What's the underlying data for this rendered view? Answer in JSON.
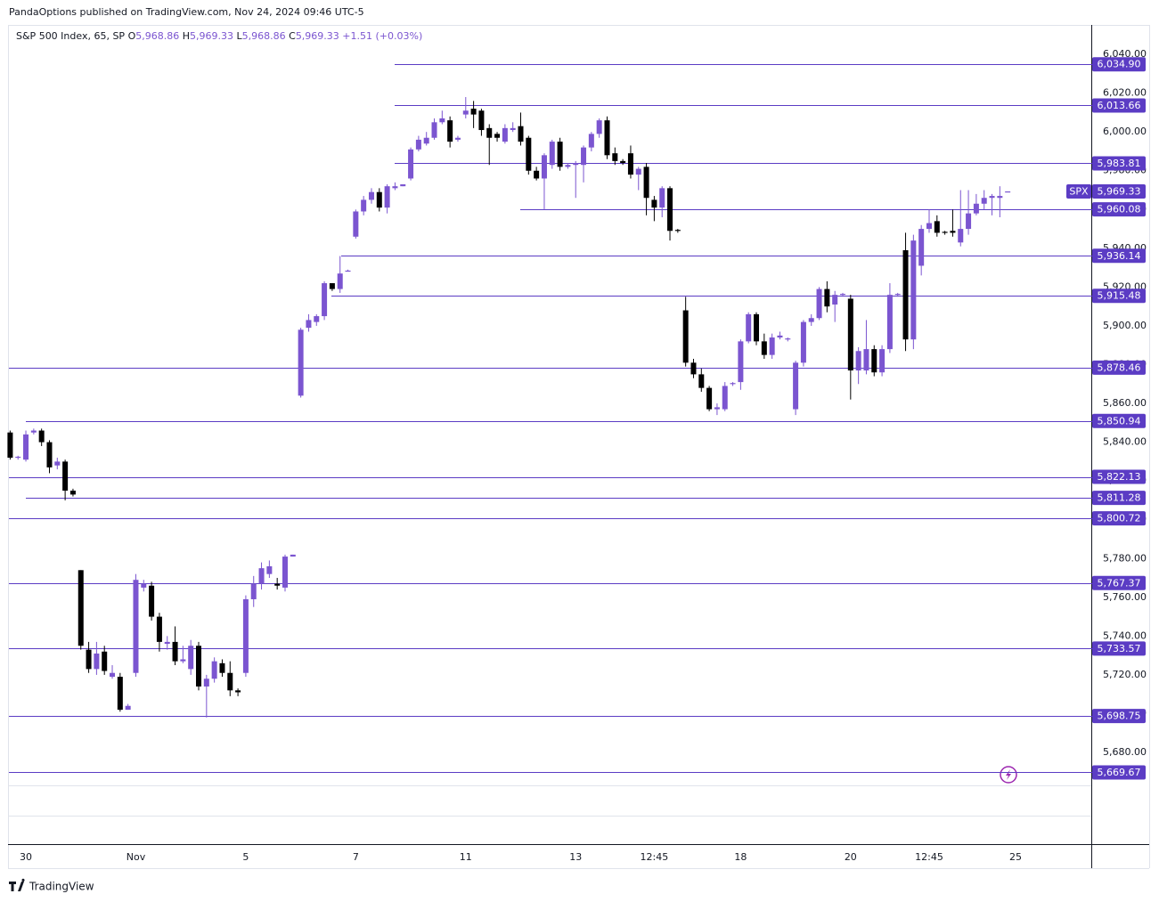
{
  "header": "PandaOptions published on TradingView.com, Nov 24, 2024 09:46 UTC-5",
  "legend": {
    "symbol": "S&P 500 Index, 65, SP",
    "o_key": "O",
    "o": "5,968.86",
    "h_key": "H",
    "h": "5,969.33",
    "l_key": "L",
    "l": "5,968.86",
    "c_key": "C",
    "c": "5,969.33",
    "change": "+1.51 (+0.03%)"
  },
  "footer": "TradingView",
  "chart_data": {
    "type": "candlestick",
    "up_color": "#7b55d0",
    "down_color": "#000000",
    "level_color": "#5b3cc4",
    "grid": false,
    "ylim": [
      5632.7,
      6055.2
    ],
    "yticks": [
      {
        "value": 6040,
        "label": "6,040.00"
      },
      {
        "value": 6020,
        "label": "6,020.00"
      },
      {
        "value": 6000,
        "label": "6,000.00"
      },
      {
        "value": 5980,
        "label": "5,980.00"
      },
      {
        "value": 5960,
        "label": "5,960.00"
      },
      {
        "value": 5940,
        "label": "5,940.00"
      },
      {
        "value": 5920,
        "label": "5,920.00"
      },
      {
        "value": 5900,
        "label": "5,900.00"
      },
      {
        "value": 5880,
        "label": "5,880.00"
      },
      {
        "value": 5860,
        "label": "5,860.00"
      },
      {
        "value": 5840,
        "label": "5,840.00"
      },
      {
        "value": 5820,
        "label": "5,820.00"
      },
      {
        "value": 5800,
        "label": "5,800.00"
      },
      {
        "value": 5780,
        "label": "5,780.00"
      },
      {
        "value": 5760,
        "label": "5,760.00"
      },
      {
        "value": 5740,
        "label": "5,740.00"
      },
      {
        "value": 5720,
        "label": "5,720.00"
      },
      {
        "value": 5700,
        "label": "5,700.00"
      },
      {
        "value": 5680,
        "label": "5,680.00"
      }
    ],
    "levels": [
      {
        "value": 6034.9,
        "label": "6,034.90"
      },
      {
        "value": 6013.66,
        "label": "6,013.66"
      },
      {
        "value": 5983.81,
        "label": "5,983.81"
      },
      {
        "value": 5960.08,
        "label": "5,960.08"
      },
      {
        "value": 5936.14,
        "label": "5,936.14"
      },
      {
        "value": 5915.48,
        "label": "5,915.48"
      },
      {
        "value": 5878.46,
        "label": "5,878.46"
      },
      {
        "value": 5850.94,
        "label": "5,850.94"
      },
      {
        "value": 5822.13,
        "label": "5,822.13"
      },
      {
        "value": 5811.28,
        "label": "5,811.28"
      },
      {
        "value": 5800.72,
        "label": "5,800.72"
      },
      {
        "value": 5767.37,
        "label": "5,767.37"
      },
      {
        "value": 5733.57,
        "label": "5,733.57"
      },
      {
        "value": 5698.75,
        "label": "5,698.75"
      },
      {
        "value": 5669.67,
        "label": "5,669.67"
      }
    ],
    "price": {
      "symbol": "SPX",
      "value": 5969.33,
      "label": "5,969.33"
    },
    "categories": [
      null,
      null,
      "30",
      null,
      null,
      null,
      null,
      null,
      null,
      null,
      null,
      null,
      null,
      null,
      null,
      null,
      "Nov",
      null,
      null,
      null,
      null,
      null,
      null,
      null,
      null,
      null,
      null,
      null,
      null,
      null,
      "5",
      null,
      null,
      null,
      null,
      null,
      null,
      null,
      null,
      null,
      null,
      null,
      null,
      null,
      "7",
      null,
      null,
      null,
      null,
      null,
      null,
      null,
      null,
      null,
      null,
      null,
      null,
      null,
      "11",
      null,
      null,
      null,
      null,
      null,
      null,
      null,
      null,
      null,
      null,
      null,
      null,
      null,
      "13",
      null,
      null,
      null,
      null,
      null,
      null,
      null,
      null,
      null,
      "12:45",
      null,
      null,
      null,
      null,
      null,
      null,
      null,
      null,
      null,
      null,
      "18",
      null,
      null,
      null,
      null,
      null,
      null,
      null,
      null,
      null,
      null,
      null,
      null,
      null,
      "20",
      null,
      null,
      null,
      null,
      null,
      null,
      null,
      null,
      null,
      "12:45",
      null,
      null,
      null,
      null,
      null,
      null,
      null,
      null,
      null,
      null,
      "25"
    ],
    "open": [
      5845,
      5832,
      5831,
      5845,
      5846,
      5840,
      5828,
      5830,
      5815,
      5774,
      5733,
      5723,
      5732,
      5719,
      5719,
      5702,
      5721,
      5765,
      5766,
      5750,
      5736,
      5737,
      5727,
      5723,
      5735,
      5714,
      5718,
      5726,
      5721,
      5712,
      5721,
      5759,
      5767,
      5772,
      5767,
      5765,
      5781,
      5864,
      5899,
      5902,
      5905,
      5922,
      5919,
      5928,
      5946,
      5959,
      5965,
      5969,
      5961,
      5971,
      5972,
      5976,
      5991,
      5994,
      5997,
      6005,
      6006,
      5996,
      6009,
      6012,
      6011,
      6002,
      5999,
      5995,
      6001,
      6003,
      5997,
      5980,
      5976,
      5983,
      5995,
      5982,
      5983,
      5983,
      5992,
      5999,
      6006,
      5989,
      5985,
      5989,
      5978,
      5982,
      5965,
      5961,
      5971,
      5949.5,
      5908,
      5881,
      5875,
      5868,
      5857,
      5857,
      5870,
      5871,
      5892,
      5906,
      5892,
      5885,
      5894,
      5893,
      5857,
      5881,
      5902,
      5904,
      5919,
      5911,
      5916,
      5914,
      5877,
      5877,
      5888,
      5876,
      5888,
      5916,
      5939,
      5893,
      5931,
      5950,
      5954,
      5948.5,
      5949,
      5943,
      5950,
      5958,
      5963,
      5966,
      5966,
      5968.86,
      null
    ],
    "high": [
      5846,
      5833,
      5846,
      5847,
      5847,
      5841,
      5832,
      5831,
      5816,
      5774,
      5737,
      5737,
      5735,
      5725,
      5721,
      5705,
      5772,
      5769,
      5768,
      5752,
      5740,
      5745,
      5735,
      5738,
      5737,
      5720,
      5729,
      5728,
      5727,
      5713,
      5761,
      5771,
      5778,
      5779,
      5770,
      5782,
      5782,
      5899,
      5906,
      5906,
      5923,
      5922,
      5936,
      5929,
      5960,
      5967,
      5971,
      5971,
      5973,
      5974,
      5973,
      5992,
      5998,
      6000,
      6007,
      6011,
      6008,
      5998,
      6018,
      6016,
      6012,
      6004,
      6000,
      6004,
      6005,
      6010,
      5998,
      5982,
      5989,
      5996,
      5997,
      5984,
      5985,
      5993,
      6000,
      6007,
      6008,
      5992,
      5986,
      5993,
      5982,
      5984,
      5967,
      5972,
      5972,
      5950,
      5915,
      5883,
      5878,
      5869,
      5860,
      5871,
      5871,
      5893,
      5907,
      5907,
      5896,
      5896,
      5897,
      5894,
      5882,
      5903,
      5906,
      5920,
      5923,
      5918,
      5917,
      5916,
      5889,
      5903,
      5890,
      5890,
      5922,
      5917,
      5948,
      5947,
      5952,
      5960,
      5957,
      5949,
      5960,
      5970,
      5970,
      5968,
      5970,
      5968,
      5972,
      5969.33,
      null
    ],
    "low": [
      5831,
      5831,
      5830,
      5844,
      5838,
      5824,
      5826,
      5810,
      5812,
      5733,
      5721,
      5720,
      5720,
      5718,
      5701,
      5702,
      5719,
      5763,
      5748,
      5732,
      5733,
      5725,
      5726,
      5720,
      5712,
      5698,
      5716,
      5719,
      5709,
      5709,
      5719,
      5755,
      5764,
      5770,
      5764,
      5763,
      5781,
      5863,
      5897,
      5900,
      5903,
      5918,
      5917,
      5928,
      5945,
      5957,
      5963,
      5959,
      5958,
      5970,
      5972,
      5975,
      5990,
      5993,
      5996,
      6004,
      5992,
      5995,
      6007,
      6002,
      5998,
      5983,
      5995,
      5994,
      6000,
      5993,
      5978,
      5975,
      5960,
      5981,
      5980,
      5981,
      5966,
      5974,
      5990,
      5997,
      5986,
      5983,
      5983,
      5976,
      5970,
      5957,
      5954,
      5956,
      5944,
      5948,
      5879,
      5873,
      5866,
      5856,
      5854,
      5856,
      5869,
      5867,
      5891,
      5890,
      5883,
      5883,
      5893,
      5892,
      5854,
      5879,
      5900,
      5903,
      5907,
      5902,
      5915,
      5862,
      5870,
      5875,
      5874,
      5874,
      5886,
      5915,
      5887,
      5888,
      5926,
      5948,
      5946,
      5947,
      5946,
      5941,
      5947,
      5957,
      5960,
      5957,
      5956,
      5968.86,
      null
    ],
    "close": [
      5832,
      5832.5,
      5844,
      5846,
      5840,
      5827,
      5830,
      5815,
      5813,
      5735,
      5723,
      5731,
      5722,
      5721,
      5702,
      5704,
      5769,
      5767,
      5750,
      5737,
      5737,
      5727,
      5728,
      5735,
      5714,
      5718,
      5727,
      5721,
      5712,
      5711,
      5759,
      5767,
      5775,
      5776,
      5766,
      5781,
      5782,
      5898,
      5903,
      5905,
      5922,
      5919,
      5927,
      5928.5,
      5959,
      5965,
      5969,
      5961,
      5972,
      5972,
      5973,
      5991,
      5996,
      5997,
      6005,
      6007,
      5995,
      5997,
      6011,
      6009,
      6001,
      5997,
      5997,
      6002,
      6002,
      5995,
      5980,
      5976,
      5988,
      5995,
      5982,
      5983,
      5984,
      5992,
      5999,
      6006,
      5988,
      5985,
      5984,
      5978,
      5981,
      5966,
      5961,
      5971,
      5949,
      5949,
      5881,
      5875,
      5868,
      5857,
      5858,
      5869,
      5870.5,
      5892,
      5906,
      5892,
      5885,
      5894,
      5895,
      5893.5,
      5881,
      5902,
      5904,
      5919,
      5910,
      5916,
      5916.5,
      5877,
      5887,
      5888,
      5876,
      5888,
      5916,
      5916.5,
      5893,
      5944,
      5950,
      5953,
      5948,
      5948,
      5948,
      5950,
      5958,
      5963,
      5966,
      5967,
      5967,
      5969.33,
      null
    ]
  }
}
